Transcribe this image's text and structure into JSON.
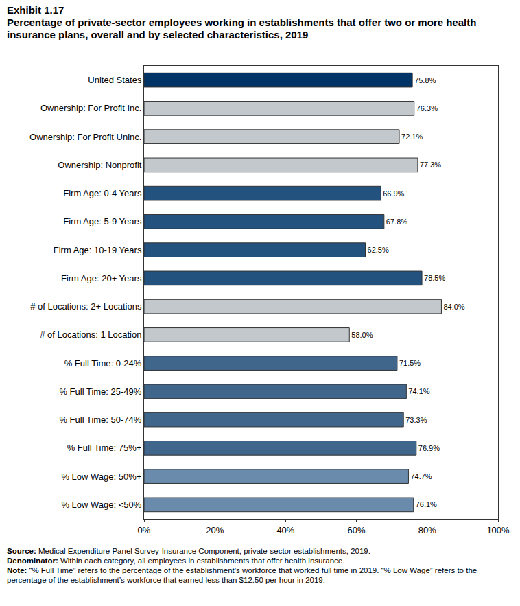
{
  "chart_data": {
    "type": "bar",
    "orientation": "horizontal",
    "title": "Exhibit 1.17",
    "subtitle": "Percentage of private-sector employees working in establishments that offer two or more health insurance plans, overall and by selected characteristics, 2019",
    "categories": [
      "United States",
      "Ownership: For Profit Inc.",
      "Ownership: For Profit Uninc.",
      "Ownership: Nonprofit",
      "Firm Age: 0-4 Years",
      "Firm Age: 5-9 Years",
      "Firm Age: 10-19 Years",
      "Firm Age: 20+ Years",
      "# of Locations: 2+ Locations",
      "# of Locations: 1 Location",
      "% Full Time: 0-24%",
      "% Full Time: 25-49%",
      "% Full Time: 50-74%",
      "% Full Time: 75%+",
      "% Low Wage: 50%+",
      "% Low Wage: <50%"
    ],
    "values": [
      75.8,
      76.3,
      72.1,
      77.3,
      66.9,
      67.8,
      62.5,
      78.5,
      84.0,
      58.0,
      71.5,
      74.1,
      73.3,
      76.9,
      74.7,
      76.1
    ],
    "value_labels": [
      "75.8%",
      "76.3%",
      "72.1%",
      "77.3%",
      "66.9%",
      "67.8%",
      "62.5%",
      "78.5%",
      "84.0%",
      "58.0%",
      "71.5%",
      "74.1%",
      "73.3%",
      "76.9%",
      "74.7%",
      "76.1%"
    ],
    "colors": [
      "#003366",
      "#c3c8cd",
      "#c3c8cd",
      "#c3c8cd",
      "#24527f",
      "#24527f",
      "#24527f",
      "#24527f",
      "#c3c8cd",
      "#c3c8cd",
      "#40668c",
      "#40668c",
      "#40668c",
      "#40668c",
      "#6a8bab",
      "#6a8bab"
    ],
    "data_labels": true,
    "xlim": [
      0,
      100
    ],
    "xticks": [
      {
        "value": 0,
        "label": "0%"
      },
      {
        "value": 20,
        "label": "20%"
      },
      {
        "value": 40,
        "label": "40%"
      },
      {
        "value": 60,
        "label": "60%"
      },
      {
        "value": 80,
        "label": "80%"
      },
      {
        "value": 100,
        "label": "100%"
      }
    ],
    "grid": false,
    "annotations": [
      {
        "label": "Source:",
        "text": "Medical Expenditure Panel Survey-Insurance Component, private-sector establishments, 2019."
      },
      {
        "label": "Denominator:",
        "text": "Within each category, all employees in establishments that offer health insurance."
      },
      {
        "label": "Note:",
        "text": "“% Full Time” refers to the percentage of the establishment’s workforce that worked full time in 2019. “% Low Wage” refers to the percentage of the establishment’s workforce that earned less than $12.50 per hour in 2019."
      }
    ]
  }
}
